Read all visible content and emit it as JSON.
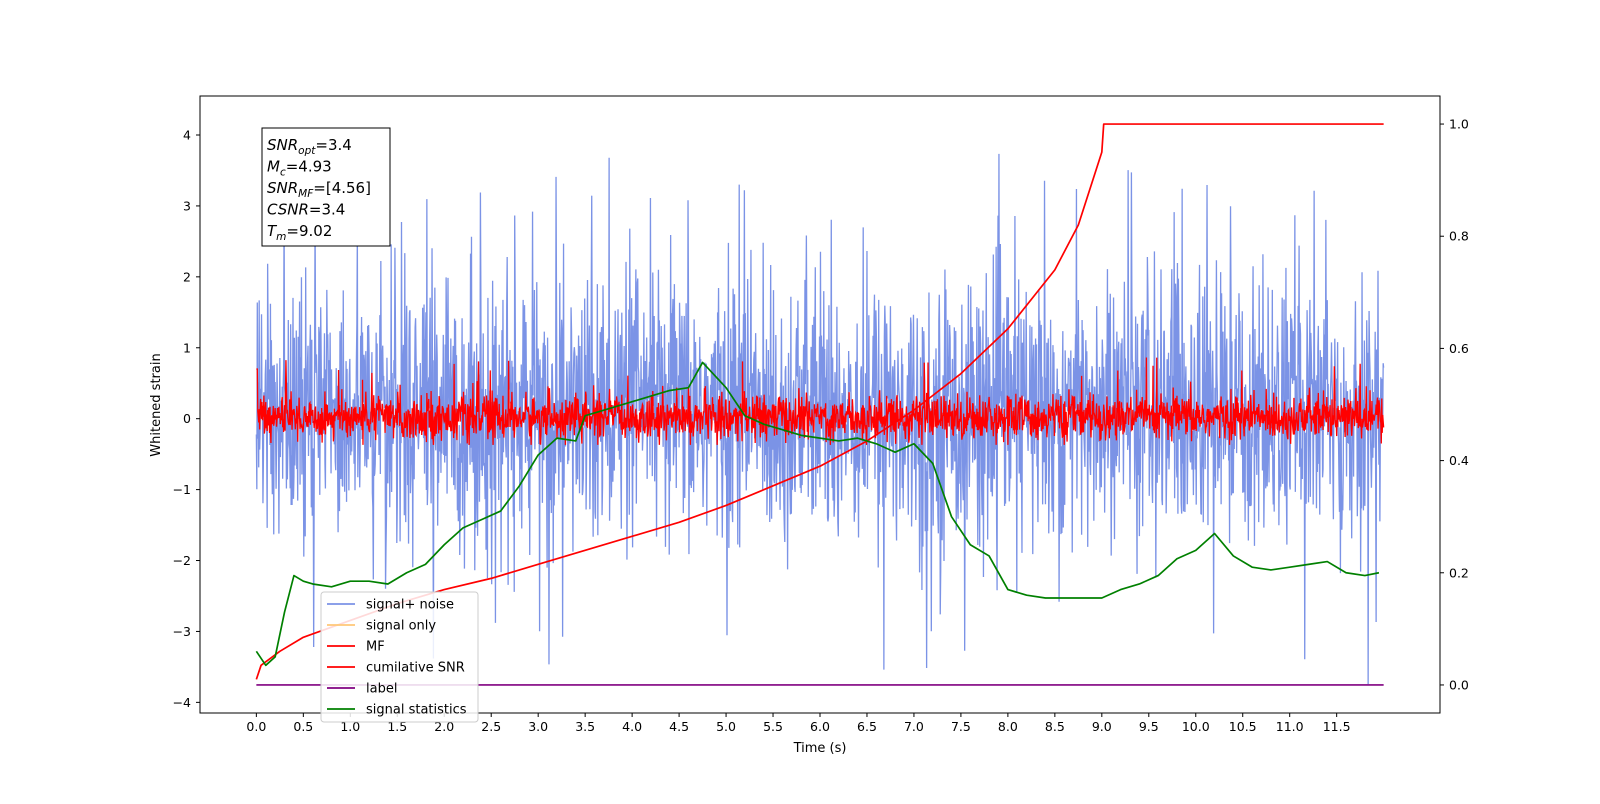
{
  "chart_data": {
    "type": "line",
    "title": "",
    "xlabel": "Time (s)",
    "ylabel": "Whitened strain",
    "ylabel_right": "",
    "xlim": [
      -0.6,
      12.6
    ],
    "ylim": [
      -4.15,
      4.55
    ],
    "ylim_right": [
      -0.05,
      1.05
    ],
    "x_ticks": [
      0.0,
      0.5,
      1.0,
      1.5,
      2.0,
      2.5,
      3.0,
      3.5,
      4.0,
      4.5,
      5.0,
      5.5,
      6.0,
      6.5,
      7.0,
      7.5,
      8.0,
      8.5,
      9.0,
      9.5,
      10.0,
      10.5,
      11.0,
      11.5
    ],
    "x_tick_labels": [
      "0.0",
      "0.5",
      "1.0",
      "1.5",
      "2.0",
      "2.5",
      "3.0",
      "3.5",
      "4.0",
      "4.5",
      "5.0",
      "5.5",
      "6.0",
      "6.5",
      "7.0",
      "7.5",
      "8.0",
      "8.5",
      "9.0",
      "9.5",
      "10.0",
      "10.5",
      "11.0",
      "11.5"
    ],
    "y_ticks": [
      4,
      3,
      2,
      1,
      0,
      -1,
      -2,
      -3,
      -4
    ],
    "y_tick_labels": [
      "4",
      "3",
      "2",
      "1",
      "0",
      "−1",
      "−2",
      "−3",
      "−4"
    ],
    "y_right_ticks": [
      1.0,
      0.8,
      0.6,
      0.4,
      0.2,
      0.0
    ],
    "y_right_tick_labels": [
      "1.0",
      "0.8",
      "0.6",
      "0.4",
      "0.2",
      "0.0"
    ],
    "grid": false,
    "legend_position": "bottom-left",
    "legend": [
      {
        "label": "signal+ noise",
        "color": "#7b93e6"
      },
      {
        "label": "signal only",
        "color": "#ffc777"
      },
      {
        "label": "MF",
        "color": "#ff0000"
      },
      {
        "label": "cumilative SNR",
        "color": "#ff0000"
      },
      {
        "label": "label",
        "color": "#800080"
      },
      {
        "label": "signal statistics",
        "color": "#008000"
      }
    ],
    "annotation": [
      {
        "base": "SNR",
        "sub": "opt",
        "value": "=3.4"
      },
      {
        "base": "M",
        "sub": "c",
        "value": "=4.93"
      },
      {
        "base": "SNR",
        "sub": "MF",
        "value": "=[4.56]"
      },
      {
        "base": "CSNR",
        "sub": "",
        "value": "=3.4"
      },
      {
        "base": "T",
        "sub": "m",
        "value": "=9.02"
      }
    ],
    "series": [
      {
        "name": "signal+ noise",
        "axis": "left",
        "color": "#7b93e6",
        "description": "whitened noise fluctuating roughly between -2.3 and 2.6 with spikes up to 3.9 and down to -3.7",
        "x_range": [
          0.0,
          12.0
        ],
        "envelope": [
          -2.3,
          2.6
        ]
      },
      {
        "name": "MF",
        "axis": "left",
        "color": "#ff0000",
        "description": "matched filter output fluctuating between about -0.35 and 0.5 with occasional peaks near 0.85",
        "x_range": [
          0.0,
          12.0
        ],
        "envelope": [
          -0.35,
          0.5
        ]
      },
      {
        "name": "cumilative SNR",
        "axis": "right",
        "color": "#ff0000",
        "x": [
          0.0,
          0.05,
          0.25,
          0.5,
          1.0,
          1.5,
          2.0,
          2.5,
          3.0,
          3.5,
          4.0,
          4.5,
          5.0,
          5.5,
          6.0,
          6.5,
          7.0,
          7.5,
          8.0,
          8.5,
          8.75,
          9.0,
          9.02,
          12.0
        ],
        "y": [
          0.01,
          0.035,
          0.06,
          0.085,
          0.115,
          0.145,
          0.17,
          0.19,
          0.215,
          0.24,
          0.265,
          0.29,
          0.32,
          0.355,
          0.39,
          0.435,
          0.49,
          0.555,
          0.635,
          0.74,
          0.82,
          0.95,
          1.0,
          1.0
        ]
      },
      {
        "name": "label",
        "axis": "right",
        "color": "#800080",
        "x": [
          0.0,
          12.0
        ],
        "y": [
          0.0,
          0.0
        ]
      },
      {
        "name": "signal statistics",
        "axis": "right",
        "color": "#008000",
        "x": [
          0.0,
          0.1,
          0.2,
          0.3,
          0.4,
          0.5,
          0.6,
          0.8,
          1.0,
          1.2,
          1.4,
          1.6,
          1.8,
          2.0,
          2.2,
          2.4,
          2.6,
          2.8,
          3.0,
          3.2,
          3.4,
          3.5,
          3.6,
          3.8,
          4.0,
          4.2,
          4.4,
          4.6,
          4.75,
          5.0,
          5.2,
          5.4,
          5.6,
          5.8,
          6.0,
          6.2,
          6.4,
          6.6,
          6.8,
          7.0,
          7.2,
          7.4,
          7.6,
          7.8,
          8.0,
          8.2,
          8.4,
          8.6,
          8.8,
          9.0,
          9.2,
          9.4,
          9.6,
          9.8,
          10.0,
          10.2,
          10.4,
          10.6,
          10.8,
          11.0,
          11.2,
          11.4,
          11.6,
          11.8,
          11.95
        ],
        "y": [
          0.06,
          0.035,
          0.05,
          0.13,
          0.195,
          0.185,
          0.18,
          0.175,
          0.185,
          0.185,
          0.18,
          0.2,
          0.215,
          0.25,
          0.28,
          0.295,
          0.31,
          0.355,
          0.41,
          0.44,
          0.435,
          0.48,
          0.485,
          0.495,
          0.505,
          0.515,
          0.525,
          0.53,
          0.575,
          0.53,
          0.48,
          0.465,
          0.455,
          0.445,
          0.44,
          0.435,
          0.44,
          0.43,
          0.415,
          0.43,
          0.395,
          0.3,
          0.25,
          0.23,
          0.17,
          0.16,
          0.155,
          0.155,
          0.155,
          0.155,
          0.17,
          0.18,
          0.195,
          0.225,
          0.24,
          0.27,
          0.23,
          0.21,
          0.205,
          0.21,
          0.215,
          0.22,
          0.2,
          0.195,
          0.2
        ]
      }
    ]
  }
}
